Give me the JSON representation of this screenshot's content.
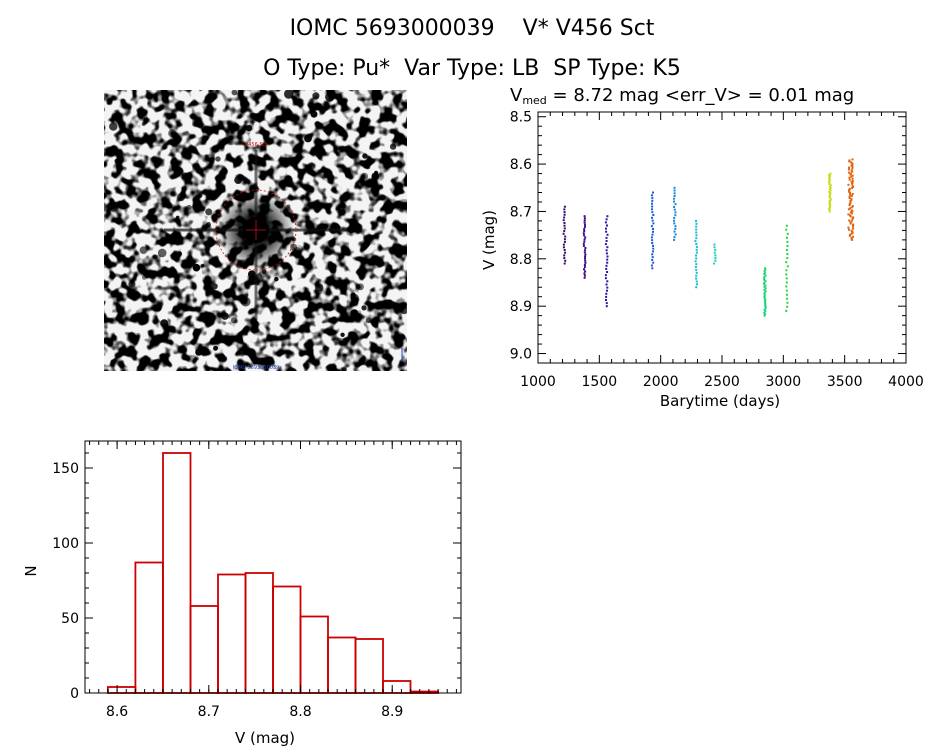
{
  "header": {
    "line1": "IOMC 5693000039    V* V456 Sct",
    "line2": "O Type: Pu*  Var Type: LB  SP Type: K5"
  },
  "lightcurve": {
    "summary_label": "V",
    "summary_sub": "med",
    "summary_rest": " = 8.72 mag <err_V> = 0.01 mag",
    "median_mag": 8.72,
    "err_v": 0.01
  },
  "stamp": {
    "caption_top": "V456 Sct",
    "caption_bottom": "IOMC 5693000039"
  },
  "chart_data": [
    {
      "type": "scatter",
      "title": "V_med = 8.72 mag <err_V> = 0.01 mag",
      "xlabel": "Barytime (days)",
      "ylabel": "V (mag)",
      "xlim": [
        1000,
        4000
      ],
      "ylim": [
        9.02,
        8.49
      ],
      "xticks": [
        1000,
        1500,
        2000,
        2500,
        3000,
        3500,
        4000
      ],
      "yticks": [
        8.5,
        8.6,
        8.7,
        8.8,
        8.9,
        9.0
      ],
      "xtick_labels": [
        "1000",
        "1500",
        "2000",
        "2500",
        "3000",
        "3500",
        "4000"
      ],
      "ytick_labels": [
        "8.5",
        "8.6",
        "8.7",
        "8.8",
        "8.9",
        "9.0"
      ],
      "groups": [
        {
          "x": 1215,
          "min": 8.69,
          "max": 8.81,
          "n": 22,
          "color": "#3d0b6e"
        },
        {
          "x": 1380,
          "min": 8.71,
          "max": 8.84,
          "n": 30,
          "color": "#3a0a86"
        },
        {
          "x": 1560,
          "min": 8.71,
          "max": 8.9,
          "n": 30,
          "color": "#2a19a8"
        },
        {
          "x": 1935,
          "min": 8.66,
          "max": 8.82,
          "n": 28,
          "color": "#1e5ad8"
        },
        {
          "x": 2115,
          "min": 8.65,
          "max": 8.76,
          "n": 20,
          "color": "#1a86d8"
        },
        {
          "x": 2290,
          "min": 8.72,
          "max": 8.86,
          "n": 24,
          "color": "#18bcd4"
        },
        {
          "x": 2440,
          "min": 8.77,
          "max": 8.81,
          "n": 8,
          "color": "#18d0c0"
        },
        {
          "x": 2850,
          "min": 8.82,
          "max": 8.92,
          "n": 34,
          "color": "#18d474"
        },
        {
          "x": 3030,
          "min": 8.73,
          "max": 8.91,
          "n": 22,
          "color": "#2cd43a"
        },
        {
          "x": 3380,
          "min": 8.62,
          "max": 8.7,
          "n": 30,
          "color": "#c6dc10"
        },
        {
          "x": 3550,
          "min": 8.59,
          "max": 8.76,
          "n": 80,
          "color": "#e06410"
        }
      ]
    },
    {
      "type": "histogram",
      "xlabel": "V (mag)",
      "ylabel": "N",
      "xlim": [
        8.565,
        8.975
      ],
      "ylim": [
        0,
        168
      ],
      "xticks": [
        8.6,
        8.7,
        8.8,
        8.9
      ],
      "yticks": [
        0,
        50,
        100,
        150
      ],
      "xtick_labels": [
        "8.6",
        "8.7",
        "8.8",
        "8.9"
      ],
      "ytick_labels": [
        "0",
        "50",
        "100",
        "150"
      ],
      "bin_edges": [
        8.59,
        8.62,
        8.65,
        8.68,
        8.71,
        8.74,
        8.77,
        8.8,
        8.83,
        8.86,
        8.89,
        8.92,
        8.95
      ],
      "counts": [
        4,
        87,
        160,
        58,
        79,
        80,
        71,
        51,
        37,
        36,
        8,
        1
      ],
      "color": "#cc0000"
    }
  ]
}
